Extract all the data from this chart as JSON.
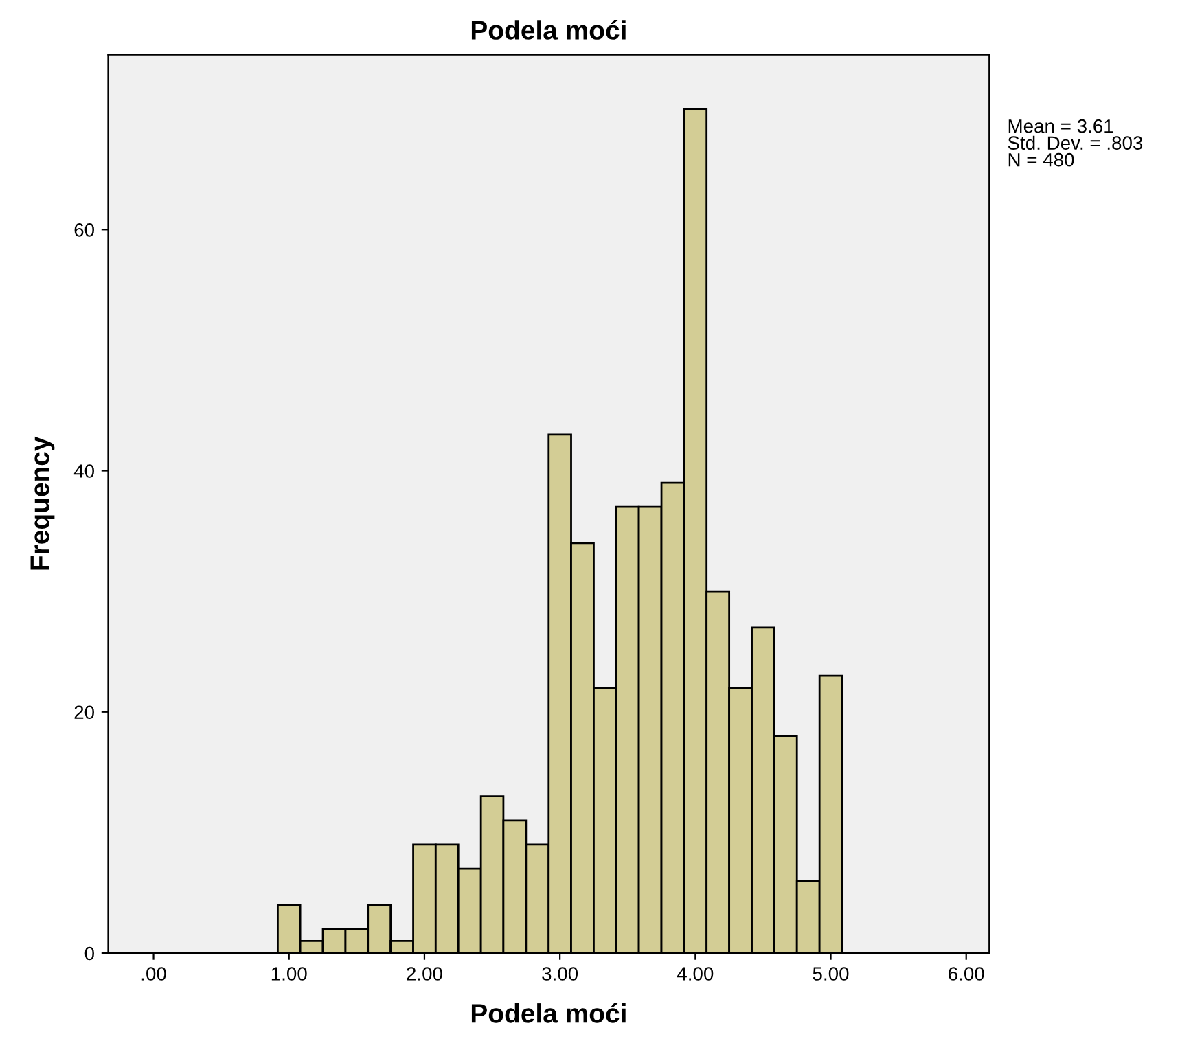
{
  "chart_data": {
    "type": "histogram",
    "title": "Podela moći",
    "xlabel": "Podela moći",
    "ylabel": "Frequency",
    "bins": [
      0.917,
      1.083,
      1.25,
      1.417,
      1.583,
      1.75,
      1.917,
      2.083,
      2.25,
      2.417,
      2.583,
      2.75,
      2.917,
      3.083,
      3.25,
      3.417,
      3.583,
      3.75,
      3.917,
      4.083,
      4.25,
      4.417,
      4.583,
      4.75,
      4.917,
      5.083
    ],
    "values": [
      4,
      1,
      2,
      2,
      4,
      1,
      9,
      9,
      7,
      13,
      11,
      9,
      43,
      34,
      22,
      37,
      37,
      39,
      70,
      30,
      22,
      27,
      18,
      6,
      23
    ],
    "color": "#d3cd95",
    "xlim": [
      -0.335,
      6.17
    ],
    "xticks": [
      {
        "value": 0,
        "label": ".00"
      },
      {
        "value": 1,
        "label": "1.00"
      },
      {
        "value": 2,
        "label": "2.00"
      },
      {
        "value": 3,
        "label": "3.00"
      },
      {
        "value": 4,
        "label": "4.00"
      },
      {
        "value": 5,
        "label": "5.00"
      },
      {
        "value": 6,
        "label": "6.00"
      }
    ],
    "ylim": [
      0,
      74.5
    ],
    "yticks": [
      0,
      20,
      40,
      60
    ],
    "grid": false,
    "legend": false,
    "annotations": [
      "Mean = 3.61",
      "Std. Dev. = .803",
      "N = 480"
    ]
  }
}
